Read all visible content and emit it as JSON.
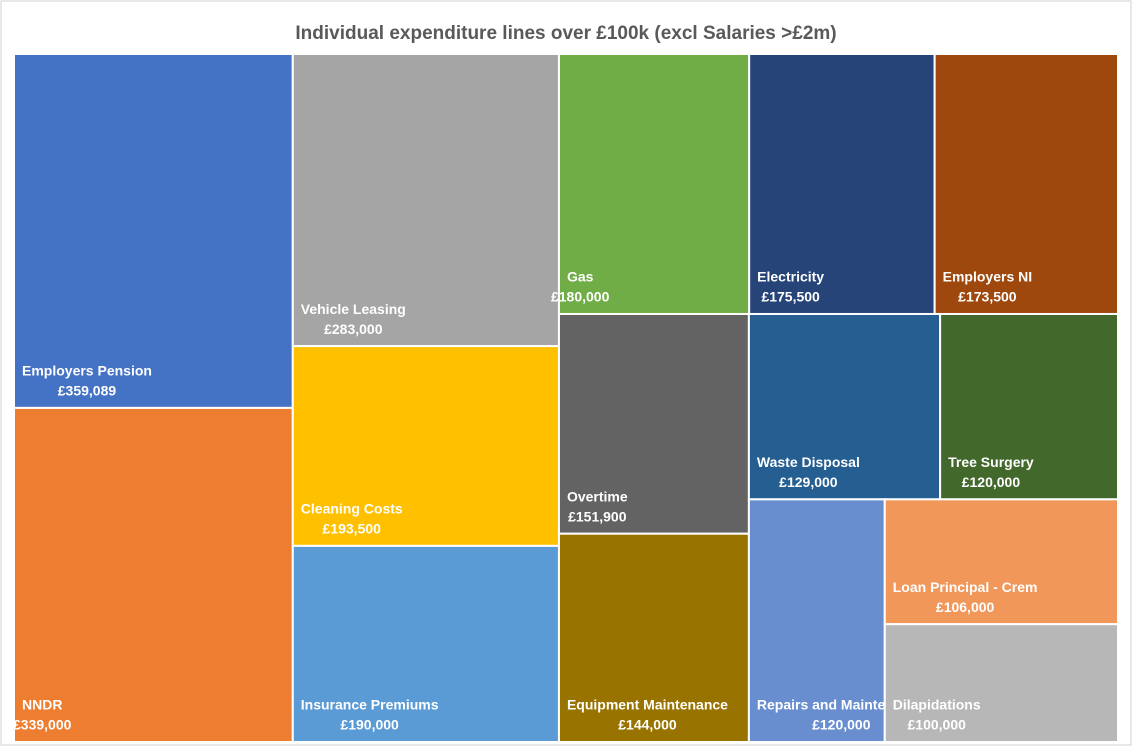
{
  "chart_data": {
    "type": "treemap",
    "title": "Individual expenditure lines over £100k (excl Salaries >£2m)",
    "categories": [
      "Employers Pension",
      "NNDR",
      "Vehicle Leasing",
      "Cleaning Costs",
      "Insurance Premiums",
      "Gas",
      "Electricity",
      "Employers NI",
      "Overtime",
      "Equipment Maintenance",
      "Waste Disposal",
      "Tree Surgery",
      "Repairs and Maintenance",
      "Loan Principal - Crem",
      "Dilapidations"
    ],
    "values": [
      359089,
      339000,
      283000,
      193500,
      190000,
      180000,
      175500,
      173500,
      151900,
      144000,
      129000,
      120000,
      120000,
      106000,
      100000
    ],
    "value_labels": [
      "£359,089",
      "£339,000",
      "£283,000",
      "£193,500",
      "£190,000",
      "£180,000",
      "£175,500",
      "£173,500",
      "£151,900",
      "£144,000",
      "£129,000",
      "£120,000",
      "£120,000",
      "£106,000",
      "£100,000"
    ],
    "colors": [
      "#4472c4",
      "#ed7d31",
      "#a5a5a5",
      "#ffc000",
      "#5b9bd5",
      "#70ad47",
      "#264478",
      "#9e480e",
      "#636363",
      "#997300",
      "#255e91",
      "#43682b",
      "#698ed0",
      "#f1975a",
      "#b7b7b7"
    ]
  }
}
